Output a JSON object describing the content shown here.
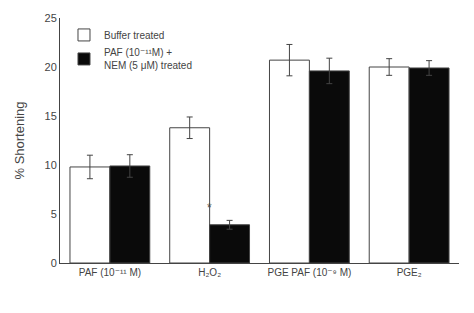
{
  "chart_data": {
    "type": "bar",
    "categories": [
      "PAF (10⁻¹¹ M)",
      "H₂O₂",
      "PGE PAF (10⁻⁹ M)",
      "PGE₂"
    ],
    "series": [
      {
        "name": "Buffer treated",
        "color": "#ffffff",
        "values": [
          9.8,
          13.8,
          20.7,
          20.0
        ],
        "errors": [
          1.2,
          1.1,
          1.6,
          0.85
        ]
      },
      {
        "name": "PAF (10⁻¹¹M) +\nNEM (5 μM) treated",
        "color": "#0a0a0a",
        "values": [
          9.9,
          3.9,
          19.6,
          19.9
        ],
        "errors": [
          1.15,
          0.45,
          1.3,
          0.75
        ]
      }
    ],
    "ylabel": "% Shortening",
    "ylim": [
      0,
      25
    ],
    "yticks": [
      0,
      5,
      10,
      15,
      20,
      25
    ],
    "annotations": [
      {
        "text": "*",
        "x": "H₂O₂",
        "y": 4.7
      }
    ],
    "legend": "upper left",
    "grid": false
  }
}
